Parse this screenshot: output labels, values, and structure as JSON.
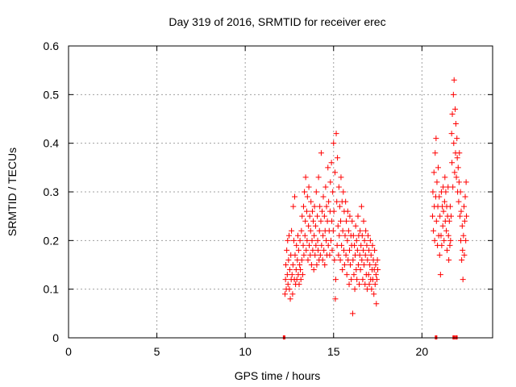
{
  "chart_data": {
    "type": "scatter",
    "title": "Day 319 of 2016, SRMTID for receiver erec",
    "xlabel": "GPS time / hours",
    "ylabel": "SRMTID / TECUs",
    "xlim": [
      0,
      24
    ],
    "ylim": [
      0,
      0.6
    ],
    "x_ticks": [
      "0",
      "5",
      "10",
      "15",
      "20"
    ],
    "x_tick_values": [
      0,
      5,
      10,
      15,
      20
    ],
    "y_ticks": [
      "0",
      "0.1",
      "0.2",
      "0.3",
      "0.4",
      "0.5",
      "0.6"
    ],
    "y_tick_values": [
      0,
      0.1,
      0.2,
      0.3,
      0.4,
      0.5,
      0.6
    ],
    "grid": true,
    "marker": "+",
    "marker_color": "#ff0000",
    "zero_markers_x": [
      12.2,
      20.8,
      21.8,
      21.95
    ],
    "series": [
      {
        "name": "SRMTID",
        "color": "#ff0000",
        "points": [
          [
            12.25,
            0.09
          ],
          [
            12.28,
            0.12
          ],
          [
            12.3,
            0.15
          ],
          [
            12.32,
            0.1
          ],
          [
            12.35,
            0.18
          ],
          [
            12.38,
            0.13
          ],
          [
            12.4,
            0.2
          ],
          [
            12.42,
            0.11
          ],
          [
            12.45,
            0.16
          ],
          [
            12.48,
            0.21
          ],
          [
            12.5,
            0.1
          ],
          [
            12.52,
            0.14
          ],
          [
            12.55,
            0.08
          ],
          [
            12.58,
            0.17
          ],
          [
            12.6,
            0.12
          ],
          [
            12.62,
            0.22
          ],
          [
            12.65,
            0.13
          ],
          [
            12.68,
            0.09
          ],
          [
            12.7,
            0.15
          ],
          [
            12.72,
            0.27
          ],
          [
            12.75,
            0.2
          ],
          [
            12.78,
            0.12
          ],
          [
            12.8,
            0.29
          ],
          [
            12.82,
            0.17
          ],
          [
            12.85,
            0.11
          ],
          [
            12.88,
            0.14
          ],
          [
            12.9,
            0.19
          ],
          [
            12.92,
            0.12
          ],
          [
            12.95,
            0.16
          ],
          [
            12.98,
            0.21
          ],
          [
            13.0,
            0.13
          ],
          [
            13.02,
            0.18
          ],
          [
            13.05,
            0.11
          ],
          [
            13.08,
            0.15
          ],
          [
            13.1,
            0.2
          ],
          [
            13.12,
            0.14
          ],
          [
            13.15,
            0.12
          ],
          [
            13.18,
            0.22
          ],
          [
            13.2,
            0.16
          ],
          [
            13.22,
            0.25
          ],
          [
            13.25,
            0.13
          ],
          [
            13.28,
            0.19
          ],
          [
            13.3,
            0.27
          ],
          [
            13.32,
            0.17
          ],
          [
            13.35,
            0.3
          ],
          [
            13.38,
            0.21
          ],
          [
            13.4,
            0.24
          ],
          [
            13.42,
            0.33
          ],
          [
            13.45,
            0.18
          ],
          [
            13.48,
            0.26
          ],
          [
            13.5,
            0.2
          ],
          [
            13.52,
            0.29
          ],
          [
            13.55,
            0.16
          ],
          [
            13.58,
            0.23
          ],
          [
            13.6,
            0.31
          ],
          [
            13.62,
            0.19
          ],
          [
            13.65,
            0.25
          ],
          [
            13.68,
            0.17
          ],
          [
            13.7,
            0.22
          ],
          [
            13.72,
            0.28
          ],
          [
            13.75,
            0.15
          ],
          [
            13.78,
            0.2
          ],
          [
            13.8,
            0.26
          ],
          [
            13.82,
            0.18
          ],
          [
            13.85,
            0.24
          ],
          [
            13.88,
            0.14
          ],
          [
            13.9,
            0.21
          ],
          [
            13.92,
            0.27
          ],
          [
            13.95,
            0.17
          ],
          [
            13.98,
            0.23
          ],
          [
            14.0,
            0.19
          ],
          [
            14.02,
            0.3
          ],
          [
            14.05,
            0.15
          ],
          [
            14.08,
            0.25
          ],
          [
            14.1,
            0.2
          ],
          [
            14.12,
            0.18
          ],
          [
            14.15,
            0.33
          ],
          [
            14.18,
            0.16
          ],
          [
            14.2,
            0.22
          ],
          [
            14.22,
            0.27
          ],
          [
            14.25,
            0.17
          ],
          [
            14.28,
            0.24
          ],
          [
            14.3,
            0.38
          ],
          [
            14.32,
            0.19
          ],
          [
            14.35,
            0.26
          ],
          [
            14.38,
            0.16
          ],
          [
            14.4,
            0.21
          ],
          [
            14.42,
            0.29
          ],
          [
            14.45,
            0.18
          ],
          [
            14.48,
            0.25
          ],
          [
            14.5,
            0.15
          ],
          [
            14.52,
            0.22
          ],
          [
            14.55,
            0.31
          ],
          [
            14.58,
            0.2
          ],
          [
            14.6,
            0.27
          ],
          [
            14.62,
            0.17
          ],
          [
            14.65,
            0.24
          ],
          [
            14.68,
            0.35
          ],
          [
            14.7,
            0.19
          ],
          [
            14.72,
            0.28
          ],
          [
            14.75,
            0.22
          ],
          [
            14.78,
            0.17
          ],
          [
            14.8,
            0.26
          ],
          [
            14.82,
            0.32
          ],
          [
            14.85,
            0.2
          ],
          [
            14.88,
            0.36
          ],
          [
            14.9,
            0.24
          ],
          [
            14.92,
            0.18
          ],
          [
            14.95,
            0.3
          ],
          [
            14.98,
            0.22
          ],
          [
            15.0,
            0.4
          ],
          [
            15.02,
            0.26
          ],
          [
            15.05,
            0.16
          ],
          [
            15.08,
            0.34
          ],
          [
            15.1,
            0.08
          ],
          [
            15.12,
            0.12
          ],
          [
            15.15,
            0.42
          ],
          [
            15.18,
            0.28
          ],
          [
            15.2,
            0.19
          ],
          [
            15.22,
            0.37
          ],
          [
            15.25,
            0.23
          ],
          [
            15.28,
            0.17
          ],
          [
            15.3,
            0.31
          ],
          [
            15.32,
            0.21
          ],
          [
            15.35,
            0.27
          ],
          [
            15.38,
            0.16
          ],
          [
            15.4,
            0.24
          ],
          [
            15.42,
            0.33
          ],
          [
            15.45,
            0.19
          ],
          [
            15.48,
            0.28
          ],
          [
            15.5,
            0.14
          ],
          [
            15.52,
            0.22
          ],
          [
            15.55,
            0.3
          ],
          [
            15.58,
            0.18
          ],
          [
            15.6,
            0.26
          ],
          [
            15.62,
            0.15
          ],
          [
            15.65,
            0.21
          ],
          [
            15.68,
            0.28
          ],
          [
            15.7,
            0.17
          ],
          [
            15.72,
            0.24
          ],
          [
            15.75,
            0.13
          ],
          [
            15.78,
            0.2
          ],
          [
            15.8,
            0.26
          ],
          [
            15.82,
            0.16
          ],
          [
            15.85,
            0.22
          ],
          [
            15.88,
            0.11
          ],
          [
            15.9,
            0.18
          ],
          [
            15.92,
            0.25
          ],
          [
            15.95,
            0.15
          ],
          [
            15.98,
            0.21
          ],
          [
            16.0,
            0.12
          ],
          [
            16.02,
            0.19
          ],
          [
            16.05,
            0.24
          ],
          [
            16.08,
            0.05
          ],
          [
            16.1,
            0.16
          ],
          [
            16.12,
            0.21
          ],
          [
            16.15,
            0.13
          ],
          [
            16.18,
            0.19
          ],
          [
            16.2,
            0.1
          ],
          [
            16.22,
            0.17
          ],
          [
            16.25,
            0.23
          ],
          [
            16.28,
            0.14
          ],
          [
            16.3,
            0.2
          ],
          [
            16.32,
            0.12
          ],
          [
            16.35,
            0.18
          ],
          [
            16.38,
            0.25
          ],
          [
            16.4,
            0.15
          ],
          [
            16.42,
            0.21
          ],
          [
            16.45,
            0.11
          ],
          [
            16.48,
            0.17
          ],
          [
            16.5,
            0.22
          ],
          [
            16.52,
            0.14
          ],
          [
            16.55,
            0.19
          ],
          [
            16.58,
            0.27
          ],
          [
            16.6,
            0.16
          ],
          [
            16.62,
            0.21
          ],
          [
            16.65,
            0.12
          ],
          [
            16.68,
            0.18
          ],
          [
            16.7,
            0.24
          ],
          [
            16.72,
            0.15
          ],
          [
            16.75,
            0.2
          ],
          [
            16.78,
            0.11
          ],
          [
            16.8,
            0.17
          ],
          [
            16.82,
            0.22
          ],
          [
            16.85,
            0.13
          ],
          [
            16.88,
            0.19
          ],
          [
            16.9,
            0.1
          ],
          [
            16.92,
            0.16
          ],
          [
            16.95,
            0.21
          ],
          [
            16.98,
            0.13
          ],
          [
            17.0,
            0.18
          ],
          [
            17.02,
            0.11
          ],
          [
            17.05,
            0.15
          ],
          [
            17.08,
            0.2
          ],
          [
            17.1,
            0.12
          ],
          [
            17.12,
            0.17
          ],
          [
            17.15,
            0.1
          ],
          [
            17.18,
            0.14
          ],
          [
            17.2,
            0.19
          ],
          [
            17.22,
            0.12
          ],
          [
            17.25,
            0.16
          ],
          [
            17.28,
            0.09
          ],
          [
            17.3,
            0.14
          ],
          [
            17.32,
            0.18
          ],
          [
            17.35,
            0.11
          ],
          [
            17.38,
            0.15
          ],
          [
            17.4,
            0.13
          ],
          [
            17.42,
            0.07
          ],
          [
            17.45,
            0.12
          ],
          [
            17.48,
            0.16
          ],
          [
            17.5,
            0.14
          ],
          [
            20.6,
            0.25
          ],
          [
            20.62,
            0.3
          ],
          [
            20.65,
            0.22
          ],
          [
            20.68,
            0.34
          ],
          [
            20.7,
            0.27
          ],
          [
            20.72,
            0.2
          ],
          [
            20.75,
            0.38
          ],
          [
            20.78,
            0.29
          ],
          [
            20.8,
            0.41
          ],
          [
            20.82,
            0.24
          ],
          [
            20.85,
            0.32
          ],
          [
            20.88,
            0.19
          ],
          [
            20.9,
            0.27
          ],
          [
            20.92,
            0.35
          ],
          [
            20.95,
            0.21
          ],
          [
            20.98,
            0.29
          ],
          [
            21.0,
            0.17
          ],
          [
            21.02,
            0.25
          ],
          [
            21.05,
            0.13
          ],
          [
            21.08,
            0.21
          ],
          [
            21.1,
            0.3
          ],
          [
            21.12,
            0.19
          ],
          [
            21.15,
            0.27
          ],
          [
            21.18,
            0.23
          ],
          [
            21.2,
            0.31
          ],
          [
            21.22,
            0.26
          ],
          [
            21.25,
            0.2
          ],
          [
            21.28,
            0.28
          ],
          [
            21.3,
            0.33
          ],
          [
            21.32,
            0.24
          ],
          [
            21.35,
            0.3
          ],
          [
            21.38,
            0.22
          ],
          [
            21.4,
            0.27
          ],
          [
            21.42,
            0.18
          ],
          [
            21.45,
            0.25
          ],
          [
            21.48,
            0.31
          ],
          [
            21.5,
            0.21
          ],
          [
            21.52,
            0.16
          ],
          [
            21.55,
            0.24
          ],
          [
            21.58,
            0.19
          ],
          [
            21.6,
            0.27
          ],
          [
            21.62,
            0.2
          ],
          [
            21.65,
            0.25
          ],
          [
            21.68,
            0.42
          ],
          [
            21.7,
            0.36
          ],
          [
            21.72,
            0.46
          ],
          [
            21.75,
            0.31
          ],
          [
            21.78,
            0.5
          ],
          [
            21.8,
            0.4
          ],
          [
            21.82,
            0.53
          ],
          [
            21.85,
            0.34
          ],
          [
            21.88,
            0.47
          ],
          [
            21.9,
            0.38
          ],
          [
            21.92,
            0.44
          ],
          [
            21.95,
            0.33
          ],
          [
            21.98,
            0.41
          ],
          [
            22.0,
            0.37
          ],
          [
            22.02,
            0.3
          ],
          [
            22.05,
            0.35
          ],
          [
            22.08,
            0.28
          ],
          [
            22.1,
            0.32
          ],
          [
            22.12,
            0.38
          ],
          [
            22.15,
            0.25
          ],
          [
            22.18,
            0.3
          ],
          [
            22.2,
            0.2
          ],
          [
            22.22,
            0.26
          ],
          [
            22.25,
            0.16
          ],
          [
            22.28,
            0.23
          ],
          [
            22.3,
            0.18
          ],
          [
            22.32,
            0.12
          ],
          [
            22.35,
            0.21
          ],
          [
            22.38,
            0.27
          ],
          [
            22.4,
            0.17
          ],
          [
            22.42,
            0.24
          ],
          [
            22.45,
            0.29
          ],
          [
            22.48,
            0.2
          ],
          [
            22.5,
            0.32
          ],
          [
            22.52,
            0.25
          ]
        ]
      }
    ]
  }
}
